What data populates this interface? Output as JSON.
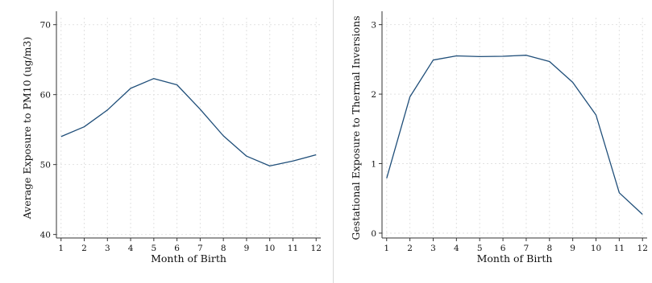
{
  "colors": {
    "line": "#1f4e79",
    "grid": "#e2e2e2",
    "axis": "#333333",
    "panel_divider": "#d9d9d9"
  },
  "chart_data": [
    {
      "type": "line",
      "title": "",
      "xlabel": "Month of Birth",
      "ylabel": "Average Exposure to PM10 (ug/m3)",
      "x": [
        1,
        2,
        3,
        4,
        5,
        6,
        7,
        8,
        9,
        10,
        11,
        12
      ],
      "xticks": [
        "1",
        "2",
        "3",
        "4",
        "5",
        "6",
        "7",
        "8",
        "9",
        "10",
        "11",
        "12"
      ],
      "yticks": [
        "40",
        "50",
        "60",
        "70"
      ],
      "ytick_values": [
        40,
        50,
        60,
        70
      ],
      "xlim": [
        0.8,
        12.2
      ],
      "ylim": [
        39.5,
        71
      ],
      "grid": true,
      "series": [
        {
          "values": [
            54.0,
            55.4,
            57.8,
            60.9,
            62.3,
            61.4,
            57.9,
            54.1,
            51.2,
            49.8,
            50.5,
            51.4
          ]
        }
      ]
    },
    {
      "type": "line",
      "title": "",
      "xlabel": "Month of Birth",
      "ylabel": "Gestational Exposure to Thermal Inversions",
      "x": [
        1,
        2,
        3,
        4,
        5,
        6,
        7,
        8,
        9,
        10,
        11,
        12
      ],
      "xticks": [
        "1",
        "2",
        "3",
        "4",
        "5",
        "6",
        "7",
        "8",
        "9",
        "10",
        "11",
        "12"
      ],
      "yticks": [
        "0",
        "1",
        "2",
        "3"
      ],
      "ytick_values": [
        0,
        1,
        2,
        3
      ],
      "xlim": [
        0.8,
        12.2
      ],
      "ylim": [
        -0.07,
        3.1
      ],
      "grid": true,
      "series": [
        {
          "values": [
            0.79,
            1.96,
            2.49,
            2.55,
            2.54,
            2.545,
            2.56,
            2.47,
            2.17,
            1.7,
            0.58,
            0.27
          ]
        }
      ]
    }
  ]
}
